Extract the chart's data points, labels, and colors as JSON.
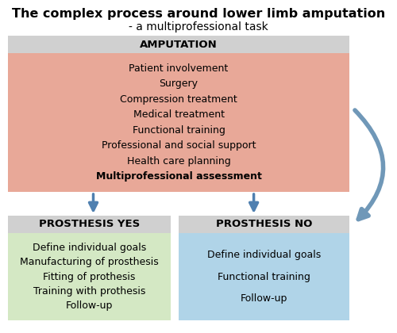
{
  "title_line1": "The complex process around lower limb amputation",
  "title_line2": "- a multiprofessional task",
  "title_fontsize": 11.5,
  "subtitle_fontsize": 10,
  "amp_header": "AMPUTATION",
  "amp_header_bg": "#d0d0d0",
  "amp_body_bg": "#e8a898",
  "amp_items": [
    "Patient involvement",
    "Surgery",
    "Compression treatment",
    "Medical treatment",
    "Functional training",
    "Professional and social support",
    "Health care planning"
  ],
  "amp_bold_item": "Multiprofessional assessment",
  "yes_header": "PROSTHESIS YES",
  "yes_header_bg": "#d0d0d0",
  "yes_body_bg": "#d4e8c4",
  "yes_items": [
    "Define individual goals",
    "Manufacturing of prosthesis",
    "Fitting of prothesis",
    "Training with prothesis",
    "Follow-up"
  ],
  "no_header": "PROSTHESIS NO",
  "no_header_bg": "#d0d0d0",
  "no_body_bg": "#b0d4e8",
  "no_items": [
    "Define individual goals",
    "Functional training",
    "Follow-up"
  ],
  "arrow_color": "#5080b0",
  "curve_arrow_color": "#7098b8",
  "item_fontsize": 9.0,
  "header_fontsize": 9.5,
  "bg_color": "#ffffff"
}
